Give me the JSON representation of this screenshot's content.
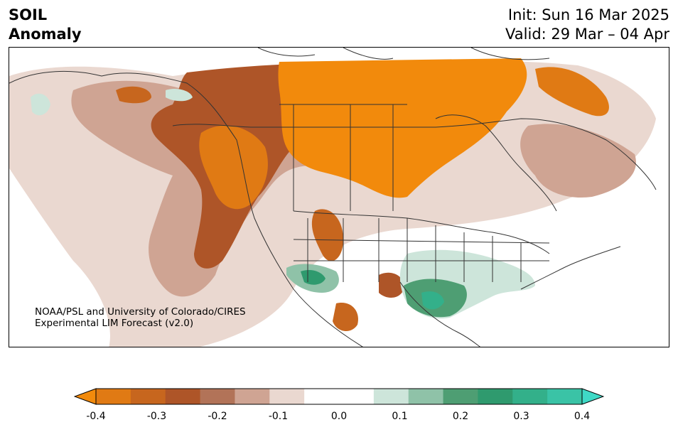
{
  "header": {
    "title_line1": "SOIL",
    "title_line2": "Anomaly",
    "init_label": "Init: Sun 16 Mar 2025",
    "valid_label": "Valid: 29 Mar – 04 Apr"
  },
  "map": {
    "credit_line1": "NOAA/PSL and University of Colorado/CIRES",
    "credit_line2": "Experimental LIM Forecast (v2.0)"
  },
  "colorbar": {
    "ticks": [
      "-0.4",
      "-0.3",
      "-0.2",
      "-0.1",
      "0.0",
      "0.1",
      "0.2",
      "0.3",
      "0.4"
    ],
    "min": -0.4,
    "max": 0.4,
    "extend": "both",
    "colors": [
      "#f28a0c",
      "#e07a14",
      "#c7661e",
      "#ae5528",
      "#b27358",
      "#cfa493",
      "#ead8d0",
      "#ffffff",
      "#ffffff",
      "#cde5da",
      "#8fc2a8",
      "#4e9e73",
      "#2f9a6e",
      "#33b08a",
      "#3ac3a6",
      "#3fd9c6"
    ]
  }
}
